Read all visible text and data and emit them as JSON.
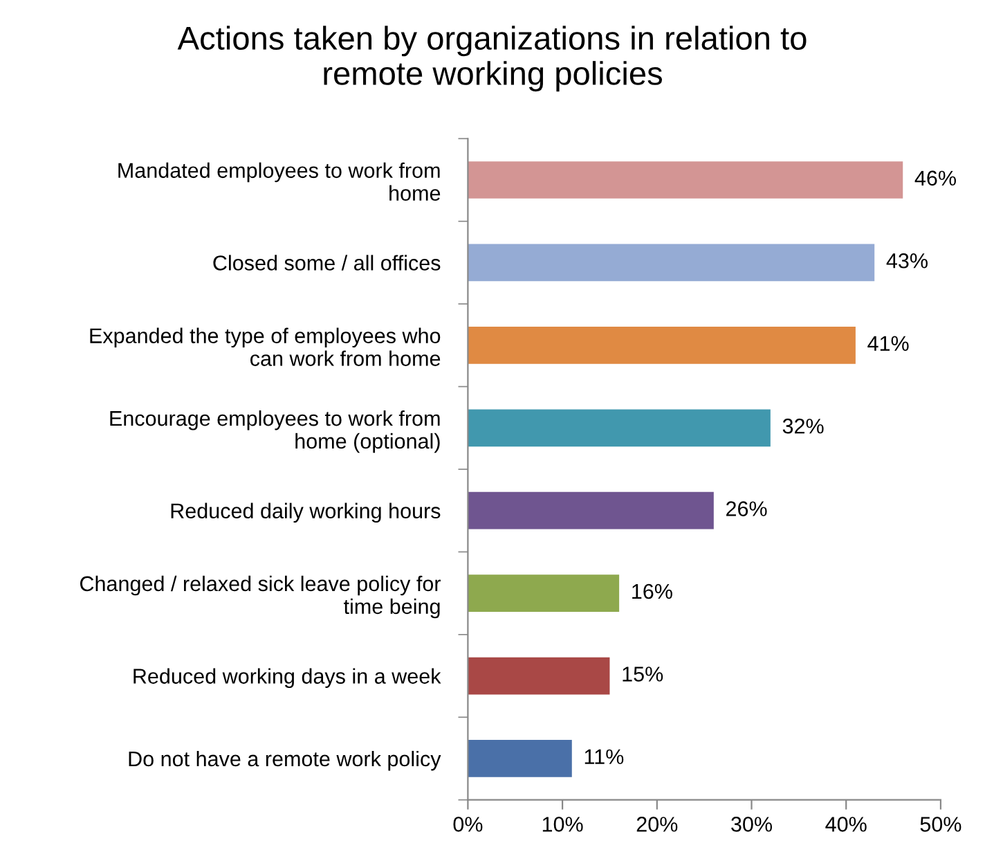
{
  "chart_data": {
    "type": "bar",
    "orientation": "horizontal",
    "title": "Actions taken by organizations in relation to\nremote working policies",
    "categories": [
      "Mandated employees to work from\nhome",
      "Closed some / all offices",
      "Expanded the type of employees who\ncan work from home",
      "Encourage employees to work from\nhome (optional)",
      "Reduced daily working hours",
      "Changed / relaxed sick leave policy for\ntime being",
      "Reduced working days in a week",
      "Do not have a remote work policy"
    ],
    "values": [
      46,
      43,
      41,
      32,
      26,
      16,
      15,
      11
    ],
    "colors": [
      "#d39594",
      "#95abd4",
      "#e08a43",
      "#4198ae",
      "#6f5590",
      "#8ea94e",
      "#a94846",
      "#4a70a8"
    ],
    "value_labels": [
      "46%",
      "43%",
      "41%",
      "32%",
      "26%",
      "16%",
      "15%",
      "11%"
    ],
    "xlim": [
      0,
      50
    ],
    "xticks": [
      {
        "value": 0,
        "label": "0%"
      },
      {
        "value": 10,
        "label": "10%"
      },
      {
        "value": 20,
        "label": "20%"
      },
      {
        "value": 30,
        "label": "30%"
      },
      {
        "value": 40,
        "label": "40%"
      },
      {
        "value": 50,
        "label": "50%"
      }
    ],
    "grid": false,
    "legend": false
  }
}
